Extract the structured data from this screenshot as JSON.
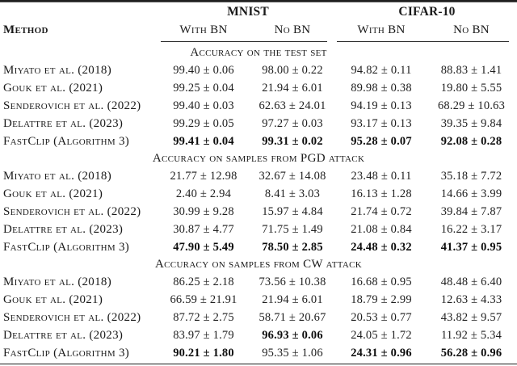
{
  "page": {
    "background": "#ffffff",
    "text_color": "#1a1a1a",
    "rule_color": "#222222"
  },
  "table": {
    "method_header": "Method",
    "groups": [
      {
        "label": "MNIST",
        "subcols": [
          "With BN",
          "No BN"
        ]
      },
      {
        "label": "CIFAR-10",
        "subcols": [
          "With BN",
          "No BN"
        ]
      }
    ],
    "sections": [
      {
        "title": "Accuracy on the test set",
        "rows": [
          {
            "method": "Miyato et al. (2018)",
            "values": [
              {
                "text": "99.40 ± 0.06",
                "bold": false
              },
              {
                "text": "98.00 ± 0.22",
                "bold": false
              },
              {
                "text": "94.82 ± 0.11",
                "bold": false
              },
              {
                "text": "88.83 ± 1.41",
                "bold": false
              }
            ]
          },
          {
            "method": "Gouk et al. (2021)",
            "values": [
              {
                "text": "99.25 ± 0.04",
                "bold": false
              },
              {
                "text": "21.94 ± 6.01",
                "bold": false
              },
              {
                "text": "89.98 ± 0.38",
                "bold": false
              },
              {
                "text": "19.80 ± 5.55",
                "bold": false
              }
            ]
          },
          {
            "method": "Senderovich et al. (2022)",
            "values": [
              {
                "text": "99.40 ± 0.03",
                "bold": false
              },
              {
                "text": "62.63 ± 24.01",
                "bold": false
              },
              {
                "text": "94.19 ± 0.13",
                "bold": false
              },
              {
                "text": "68.29 ± 10.63",
                "bold": false
              }
            ]
          },
          {
            "method": "Delattre et al. (2023)",
            "values": [
              {
                "text": "99.29 ± 0.05",
                "bold": false
              },
              {
                "text": "97.27 ± 0.03",
                "bold": false
              },
              {
                "text": "93.17 ± 0.13",
                "bold": false
              },
              {
                "text": "39.35 ± 9.84",
                "bold": false
              }
            ]
          },
          {
            "method": "FastClip (Algorithm 3)",
            "values": [
              {
                "text": "99.41 ± 0.04",
                "bold": true
              },
              {
                "text": "99.31 ± 0.02",
                "bold": true
              },
              {
                "text": "95.28 ± 0.07",
                "bold": true
              },
              {
                "text": "92.08 ± 0.28",
                "bold": true
              }
            ]
          }
        ]
      },
      {
        "title": "Accuracy on samples from PGD attack",
        "rows": [
          {
            "method": "Miyato et al. (2018)",
            "values": [
              {
                "text": "21.77 ± 12.98",
                "bold": false
              },
              {
                "text": "32.67 ± 14.08",
                "bold": false
              },
              {
                "text": "23.48 ± 0.11",
                "bold": false
              },
              {
                "text": "35.18 ± 7.72",
                "bold": false
              }
            ]
          },
          {
            "method": "Gouk et al. (2021)",
            "values": [
              {
                "text": "2.40 ± 2.94",
                "bold": false
              },
              {
                "text": "8.41 ± 3.03",
                "bold": false
              },
              {
                "text": "16.13 ± 1.28",
                "bold": false
              },
              {
                "text": "14.66 ± 3.99",
                "bold": false
              }
            ]
          },
          {
            "method": "Senderovich et al. (2022)",
            "values": [
              {
                "text": "30.99 ± 9.28",
                "bold": false
              },
              {
                "text": "15.97 ± 4.84",
                "bold": false
              },
              {
                "text": "21.74 ± 0.72",
                "bold": false
              },
              {
                "text": "39.84 ± 7.87",
                "bold": false
              }
            ]
          },
          {
            "method": "Delattre et al. (2023)",
            "values": [
              {
                "text": "30.87 ± 4.77",
                "bold": false
              },
              {
                "text": "71.75 ± 1.49",
                "bold": false
              },
              {
                "text": "21.08 ± 0.84",
                "bold": false
              },
              {
                "text": "16.22 ± 3.17",
                "bold": false
              }
            ]
          },
          {
            "method": "FastClip (Algorithm 3)",
            "values": [
              {
                "text": "47.90 ± 5.49",
                "bold": true
              },
              {
                "text": "78.50 ± 2.85",
                "bold": true
              },
              {
                "text": "24.48 ± 0.32",
                "bold": true
              },
              {
                "text": "41.37 ± 0.95",
                "bold": true
              }
            ]
          }
        ]
      },
      {
        "title": "Accuracy on samples from CW attack",
        "rows": [
          {
            "method": "Miyato et al. (2018)",
            "values": [
              {
                "text": "86.25 ± 2.18",
                "bold": false
              },
              {
                "text": "73.56 ± 10.38",
                "bold": false
              },
              {
                "text": "16.68 ± 0.95",
                "bold": false
              },
              {
                "text": "48.48 ± 6.40",
                "bold": false
              }
            ]
          },
          {
            "method": "Gouk et al. (2021)",
            "values": [
              {
                "text": "66.59 ± 21.91",
                "bold": false
              },
              {
                "text": "21.94 ± 6.01",
                "bold": false
              },
              {
                "text": "18.79 ± 2.99",
                "bold": false
              },
              {
                "text": "12.63 ± 4.33",
                "bold": false
              }
            ]
          },
          {
            "method": "Senderovich et al. (2022)",
            "values": [
              {
                "text": "87.72 ± 2.75",
                "bold": false
              },
              {
                "text": "58.71 ± 20.67",
                "bold": false
              },
              {
                "text": "20.53 ± 0.77",
                "bold": false
              },
              {
                "text": "43.82 ± 9.57",
                "bold": false
              }
            ]
          },
          {
            "method": "Delattre et al. (2023)",
            "values": [
              {
                "text": "83.97 ± 1.79",
                "bold": false
              },
              {
                "text": "96.93 ± 0.06",
                "bold": true
              },
              {
                "text": "24.05 ± 1.72",
                "bold": false
              },
              {
                "text": "11.92 ± 5.34",
                "bold": false
              }
            ]
          },
          {
            "method": "FastClip (Algorithm 3)",
            "values": [
              {
                "text": "90.21 ± 1.80",
                "bold": true
              },
              {
                "text": "95.35 ± 1.06",
                "bold": false
              },
              {
                "text": "24.31 ± 0.96",
                "bold": true
              },
              {
                "text": "56.28 ± 0.96",
                "bold": true
              }
            ]
          }
        ]
      }
    ]
  }
}
